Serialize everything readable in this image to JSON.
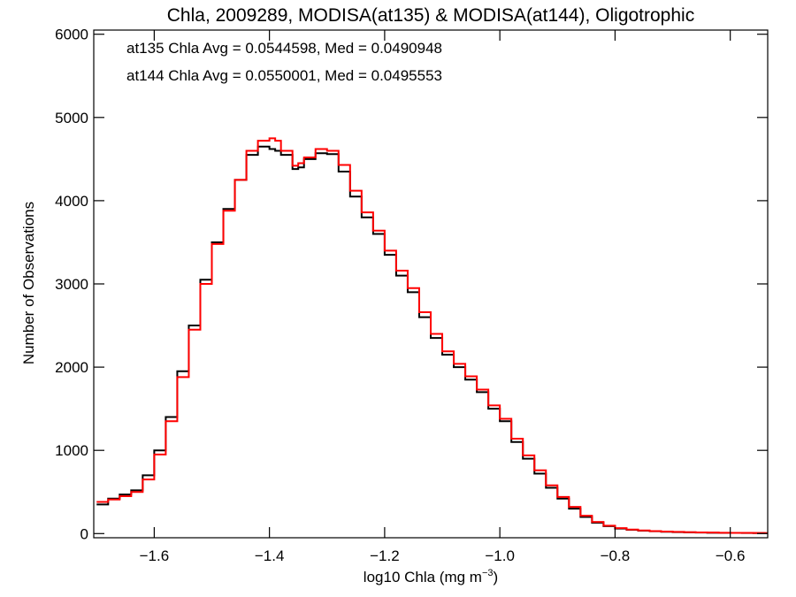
{
  "chart_data": {
    "type": "line",
    "title": "Chla, 2009289, MODISA(at135) & MODISA(at144), Oligotrophic",
    "xlabel_main": "log10 Chla (mg m",
    "xlabel_sup": "−3",
    "xlabel_close": ")",
    "ylabel": "Number of Observations",
    "xlim": [
      -1.705,
      -0.535
    ],
    "ylim": [
      -50,
      6050
    ],
    "xticks": [
      -1.6,
      -1.4,
      -1.2,
      -1.0,
      -0.8,
      -0.6
    ],
    "xtick_labels": [
      "−1.6",
      "−1.4",
      "−1.2",
      "−1.0",
      "−0.8",
      "−0.6"
    ],
    "yticks": [
      0,
      1000,
      2000,
      3000,
      4000,
      5000,
      6000
    ],
    "ytick_labels": [
      "0",
      "1000",
      "2000",
      "3000",
      "4000",
      "5000",
      "6000"
    ],
    "annotations": [
      {
        "text": "at135 Chla Avg = 0.0544598, Med = 0.0490948",
        "color": "#000000"
      },
      {
        "text": "at144 Chla Avg = 0.0550001, Med = 0.0495553",
        "color": "#ff0000"
      }
    ],
    "series": [
      {
        "color": "#000000",
        "x": [
          -1.7,
          -1.68,
          -1.66,
          -1.64,
          -1.62,
          -1.6,
          -1.58,
          -1.56,
          -1.54,
          -1.52,
          -1.5,
          -1.48,
          -1.46,
          -1.44,
          -1.42,
          -1.4,
          -1.39,
          -1.38,
          -1.36,
          -1.35,
          -1.34,
          -1.32,
          -1.3,
          -1.28,
          -1.26,
          -1.24,
          -1.22,
          -1.2,
          -1.18,
          -1.16,
          -1.14,
          -1.12,
          -1.1,
          -1.08,
          -1.06,
          -1.04,
          -1.02,
          -1.0,
          -0.98,
          -0.96,
          -0.94,
          -0.92,
          -0.9,
          -0.88,
          -0.86,
          -0.84,
          -0.82,
          -0.8,
          -0.78,
          -0.76,
          -0.74,
          -0.72,
          -0.7,
          -0.68,
          -0.66,
          -0.64,
          -0.62,
          -0.6,
          -0.58,
          -0.56,
          -0.54
        ],
        "y": [
          350,
          420,
          470,
          520,
          700,
          1000,
          1400,
          1950,
          2500,
          3050,
          3500,
          3900,
          4250,
          4550,
          4650,
          4620,
          4600,
          4550,
          4380,
          4400,
          4500,
          4570,
          4560,
          4350,
          4050,
          3800,
          3600,
          3350,
          3100,
          2900,
          2600,
          2350,
          2150,
          2000,
          1850,
          1700,
          1500,
          1350,
          1100,
          900,
          720,
          550,
          420,
          300,
          200,
          130,
          90,
          60,
          45,
          35,
          28,
          22,
          18,
          15,
          12,
          10,
          9,
          8,
          7,
          6,
          5
        ]
      },
      {
        "color": "#ff0000",
        "x": [
          -1.7,
          -1.68,
          -1.66,
          -1.64,
          -1.62,
          -1.6,
          -1.58,
          -1.56,
          -1.54,
          -1.52,
          -1.5,
          -1.48,
          -1.46,
          -1.44,
          -1.42,
          -1.4,
          -1.39,
          -1.38,
          -1.36,
          -1.35,
          -1.34,
          -1.32,
          -1.3,
          -1.28,
          -1.26,
          -1.24,
          -1.22,
          -1.2,
          -1.18,
          -1.16,
          -1.14,
          -1.12,
          -1.1,
          -1.08,
          -1.06,
          -1.04,
          -1.02,
          -1.0,
          -0.98,
          -0.96,
          -0.94,
          -0.92,
          -0.9,
          -0.88,
          -0.86,
          -0.84,
          -0.82,
          -0.8,
          -0.78,
          -0.76,
          -0.74,
          -0.72,
          -0.7,
          -0.68,
          -0.66,
          -0.64,
          -0.62,
          -0.6,
          -0.58,
          -0.56,
          -0.54
        ],
        "y": [
          380,
          410,
          450,
          500,
          650,
          950,
          1350,
          1880,
          2450,
          3000,
          3480,
          3880,
          4250,
          4600,
          4720,
          4750,
          4720,
          4600,
          4420,
          4450,
          4520,
          4620,
          4600,
          4430,
          4120,
          3860,
          3640,
          3400,
          3160,
          2950,
          2660,
          2400,
          2190,
          2040,
          1890,
          1730,
          1540,
          1380,
          1140,
          940,
          760,
          580,
          440,
          320,
          215,
          140,
          95,
          65,
          48,
          38,
          30,
          24,
          20,
          17,
          14,
          12,
          10,
          9,
          8,
          7,
          6
        ]
      }
    ]
  }
}
